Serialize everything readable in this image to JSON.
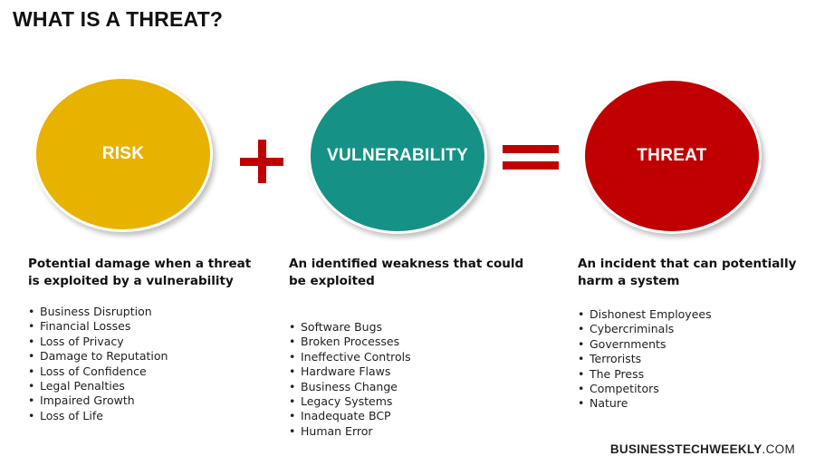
{
  "title": "WHAT IS A THREAT?",
  "colors": {
    "risk": "#e8b200",
    "vulnerability": "#159285",
    "threat": "#c00000",
    "operator": "#c00000"
  },
  "columns": [
    {
      "circle_label": "RISK",
      "description": "Potential damage when a threat is exploited by a vulnerability",
      "items": [
        "Business Disruption",
        "Financial Losses",
        "Loss of Privacy",
        "Damage to Reputation",
        "Loss of Confidence",
        "Legal Penalties",
        "Impaired Growth",
        "Loss of Life"
      ]
    },
    {
      "circle_label": "VULNERABILITY",
      "description": "An identified weakness that could be exploited",
      "items": [
        "Software Bugs",
        "Broken Processes",
        "Ineffective Controls",
        "Hardware Flaws",
        "Business Change",
        "Legacy Systems",
        "Inadequate BCP",
        "Human Error"
      ]
    },
    {
      "circle_label": "THREAT",
      "description": "An incident that can potentially harm a system",
      "items": [
        "Dishonest Employees",
        "Cybercriminals",
        "Governments",
        "Terrorists",
        "The Press",
        "Competitors",
        "Nature"
      ]
    }
  ],
  "brand": {
    "bold": "BUSINESSTECHWEEKLY",
    "suffix": ".COM"
  }
}
